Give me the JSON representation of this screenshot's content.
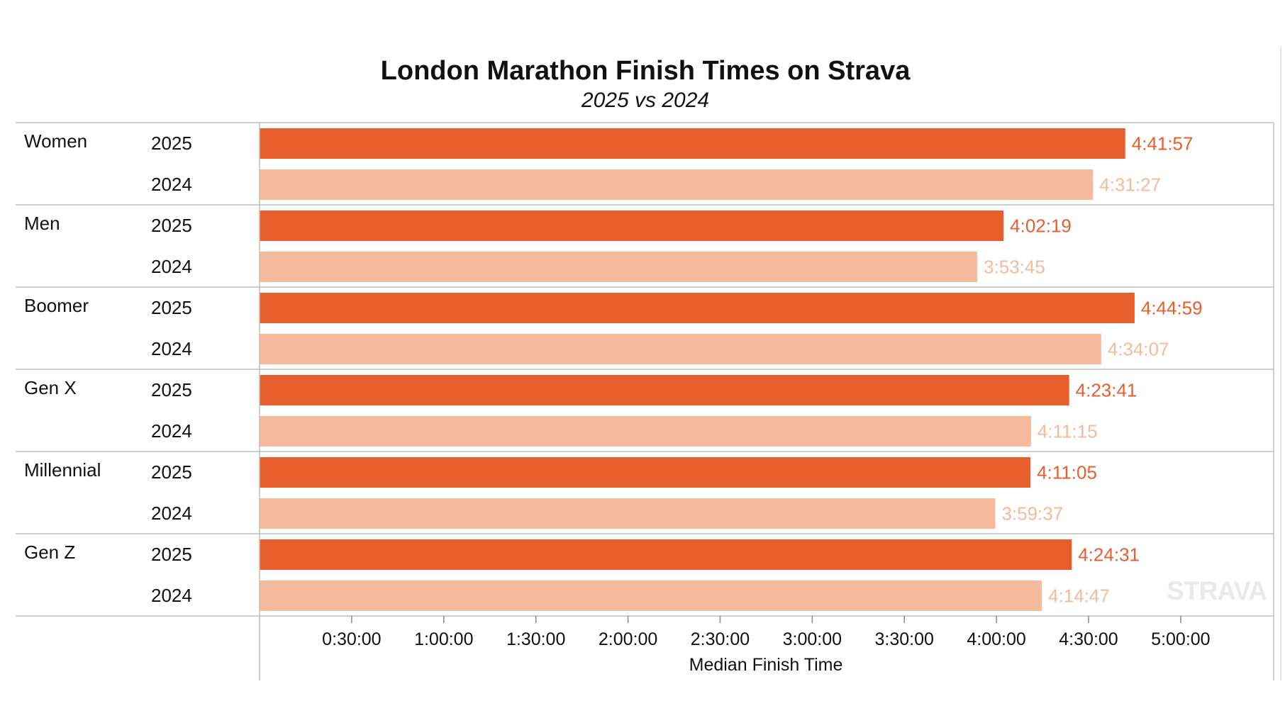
{
  "chart_data": {
    "type": "bar",
    "orientation": "horizontal",
    "title": "London Marathon Finish Times on Strava",
    "subtitle": "2025 vs 2024",
    "xlabel": "Median Finish Time",
    "xlim": [
      0,
      20000
    ],
    "x_unit": "seconds",
    "x_ticks": [
      {
        "value": 1800,
        "label": "0:30:00"
      },
      {
        "value": 3600,
        "label": "1:00:00"
      },
      {
        "value": 5400,
        "label": "1:30:00"
      },
      {
        "value": 7200,
        "label": "2:00:00"
      },
      {
        "value": 9000,
        "label": "2:30:00"
      },
      {
        "value": 10800,
        "label": "3:00:00"
      },
      {
        "value": 12600,
        "label": "3:30:00"
      },
      {
        "value": 14400,
        "label": "4:00:00"
      },
      {
        "value": 16200,
        "label": "4:30:00"
      },
      {
        "value": 18000,
        "label": "5:00:00"
      }
    ],
    "grid": false,
    "groups": [
      {
        "name": "Women",
        "rows": [
          {
            "year": "2025",
            "value": 16917,
            "label": "4:41:57"
          },
          {
            "year": "2024",
            "value": 16287,
            "label": "4:31:27"
          }
        ]
      },
      {
        "name": "Men",
        "rows": [
          {
            "year": "2025",
            "value": 14539,
            "label": "4:02:19"
          },
          {
            "year": "2024",
            "value": 14025,
            "label": "3:53:45"
          }
        ]
      },
      {
        "name": "Boomer",
        "rows": [
          {
            "year": "2025",
            "value": 17099,
            "label": "4:44:59"
          },
          {
            "year": "2024",
            "value": 16447,
            "label": "4:34:07"
          }
        ]
      },
      {
        "name": "Gen X",
        "rows": [
          {
            "year": "2025",
            "value": 15821,
            "label": "4:23:41"
          },
          {
            "year": "2024",
            "value": 15075,
            "label": "4:11:15"
          }
        ]
      },
      {
        "name": "Millennial",
        "rows": [
          {
            "year": "2025",
            "value": 15065,
            "label": "4:11:05"
          },
          {
            "year": "2024",
            "value": 14377,
            "label": "3:59:37"
          }
        ]
      },
      {
        "name": "Gen Z",
        "rows": [
          {
            "year": "2025",
            "value": 15871,
            "label": "4:24:31"
          },
          {
            "year": "2024",
            "value": 15287,
            "label": "4:14:47"
          }
        ]
      }
    ],
    "colors": {
      "2025": "#e85d2c",
      "2024": "#f5b99c"
    },
    "watermark": "STRAVA"
  }
}
